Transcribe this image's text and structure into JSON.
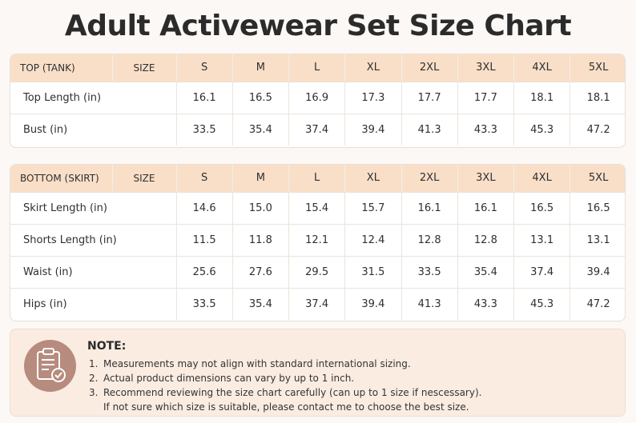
{
  "title": "Adult Activewear Set Size Chart",
  "top_table": {
    "header_label": "TOP (TANK)",
    "size_label": "SIZE",
    "sizes": [
      "S",
      "M",
      "L",
      "XL",
      "2XL",
      "3XL",
      "4XL",
      "5XL"
    ],
    "rows": [
      {
        "label": "Top Length (in)",
        "values": [
          "16.1",
          "16.5",
          "16.9",
          "17.3",
          "17.7",
          "17.7",
          "18.1",
          "18.1"
        ]
      },
      {
        "label": "Bust (in)",
        "values": [
          "33.5",
          "35.4",
          "37.4",
          "39.4",
          "41.3",
          "43.3",
          "45.3",
          "47.2"
        ]
      }
    ]
  },
  "bottom_table": {
    "header_label": "BOTTOM (SKIRT)",
    "size_label": "SIZE",
    "sizes": [
      "S",
      "M",
      "L",
      "XL",
      "2XL",
      "3XL",
      "4XL",
      "5XL"
    ],
    "rows": [
      {
        "label": "Skirt Length (in)",
        "values": [
          "14.6",
          "15.0",
          "15.4",
          "15.7",
          "16.1",
          "16.1",
          "16.5",
          "16.5"
        ]
      },
      {
        "label": "Shorts Length (in)",
        "values": [
          "11.5",
          "11.8",
          "12.1",
          "12.4",
          "12.8",
          "12.8",
          "13.1",
          "13.1"
        ]
      },
      {
        "label": "Waist (in)",
        "values": [
          "25.6",
          "27.6",
          "29.5",
          "31.5",
          "33.5",
          "35.4",
          "37.4",
          "39.4"
        ]
      },
      {
        "label": "Hips (in)",
        "values": [
          "33.5",
          "35.4",
          "37.4",
          "39.4",
          "41.3",
          "43.3",
          "45.3",
          "47.2"
        ]
      }
    ]
  },
  "note": {
    "icon": "clipboard-check-icon",
    "title": "NOTE:",
    "items": [
      {
        "num": "1.",
        "text": "Measurements may not align with standard international sizing."
      },
      {
        "num": "2.",
        "text": "Actual product dimensions can vary by up to 1 inch."
      },
      {
        "num": "3.",
        "text": "Recommend reviewing the size chart carefully (can up to 1 size if nescessary)."
      },
      {
        "num": "",
        "text": "If not sure which size is suitable, please contact me to choose the best size."
      }
    ]
  },
  "colors": {
    "header_bg": "#f9dfc8",
    "note_bg": "#fbece2",
    "icon_bg": "#b78b7e"
  }
}
